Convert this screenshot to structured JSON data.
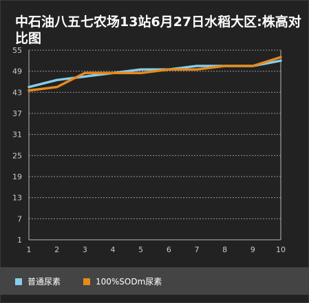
{
  "chart_data": {
    "type": "line",
    "title": "中石油八五七农场13站6月27日水稻大区:株高对比图",
    "xlabel": "",
    "ylabel": "",
    "categories": [
      "1",
      "2",
      "3",
      "4",
      "5",
      "6",
      "7",
      "8",
      "9",
      "10"
    ],
    "y_ticks": [
      "55",
      "49",
      "43",
      "37",
      "31",
      "25",
      "19",
      "13",
      "7",
      "1"
    ],
    "ylim": [
      1,
      55
    ],
    "grid": true,
    "legend_position": "bottom",
    "series": [
      {
        "name": "普通尿素",
        "color": "#87ceeb",
        "values": [
          44.5,
          46.5,
          47.5,
          48.5,
          49.5,
          49.5,
          50.5,
          50.5,
          50.5,
          52
        ]
      },
      {
        "name": "100%SODm尿素",
        "color": "#e8891c",
        "values": [
          43.5,
          44.5,
          48.5,
          48.5,
          48.5,
          49.5,
          49.5,
          50.5,
          50.5,
          53
        ]
      }
    ]
  }
}
